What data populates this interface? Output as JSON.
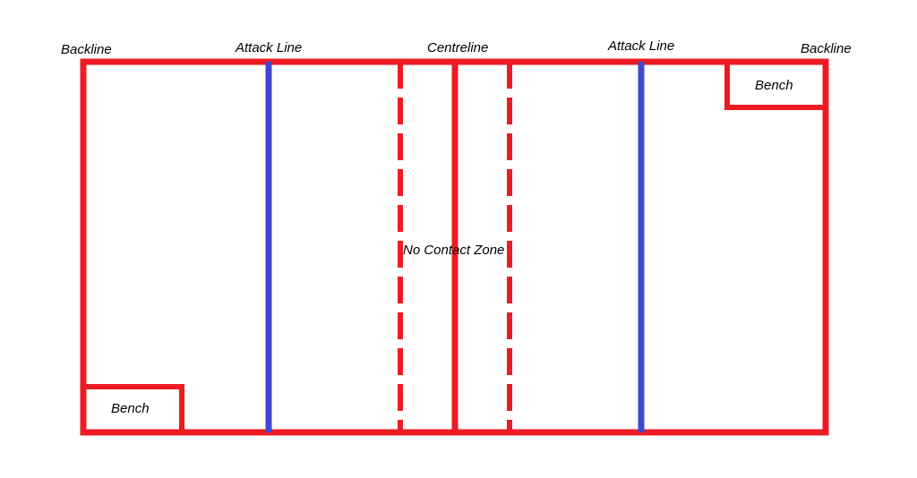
{
  "labels": {
    "backline_left": "Backline",
    "attack_line_left": "Attack Line",
    "centreline": "Centreline",
    "attack_line_right": "Attack Line",
    "backline_right": "Backline",
    "bench_top": "Bench",
    "bench_bottom": "Bench",
    "no_contact_zone": "No Contact Zone"
  },
  "colors": {
    "court_lines": "#ed1c24",
    "attack_lines": "#3f48cc",
    "text": "#000000",
    "background": "#ffffff"
  }
}
